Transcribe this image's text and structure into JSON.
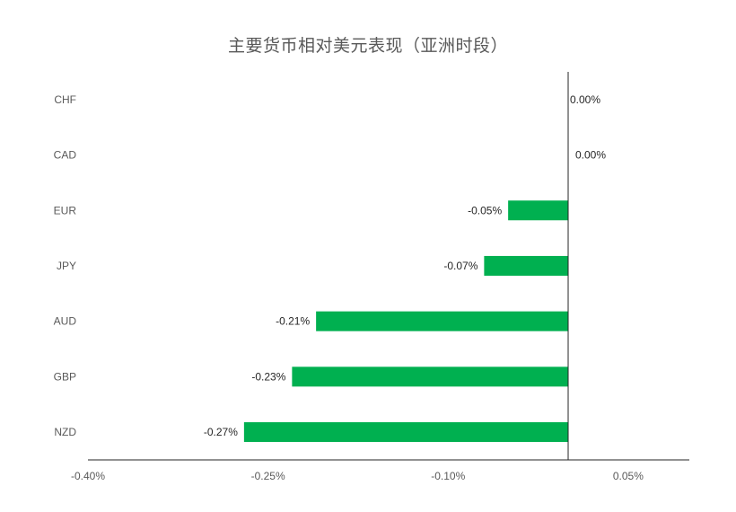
{
  "chart_data": {
    "type": "bar",
    "orientation": "horizontal",
    "title": "主要货币相对美元表现（亚洲时段）",
    "categories": [
      "CHF",
      "CAD",
      "EUR",
      "JPY",
      "AUD",
      "GBP",
      "NZD"
    ],
    "values": [
      0.0,
      0.0,
      -0.05,
      -0.07,
      -0.21,
      -0.23,
      -0.27
    ],
    "data_labels": [
      "0.00%",
      "0.00%",
      "-0.05%",
      "-0.07%",
      "-0.21%",
      "-0.23%",
      "-0.27%"
    ],
    "xlim": [
      -0.4,
      0.1
    ],
    "xticks": [
      -0.4,
      -0.25,
      -0.1,
      0.05
    ],
    "xtick_labels": [
      "-0.40%",
      "-0.25%",
      "-0.10%",
      "0.05%"
    ],
    "value_unit": "%",
    "grid": false,
    "legend": "none",
    "bar_color": "#00B050"
  }
}
